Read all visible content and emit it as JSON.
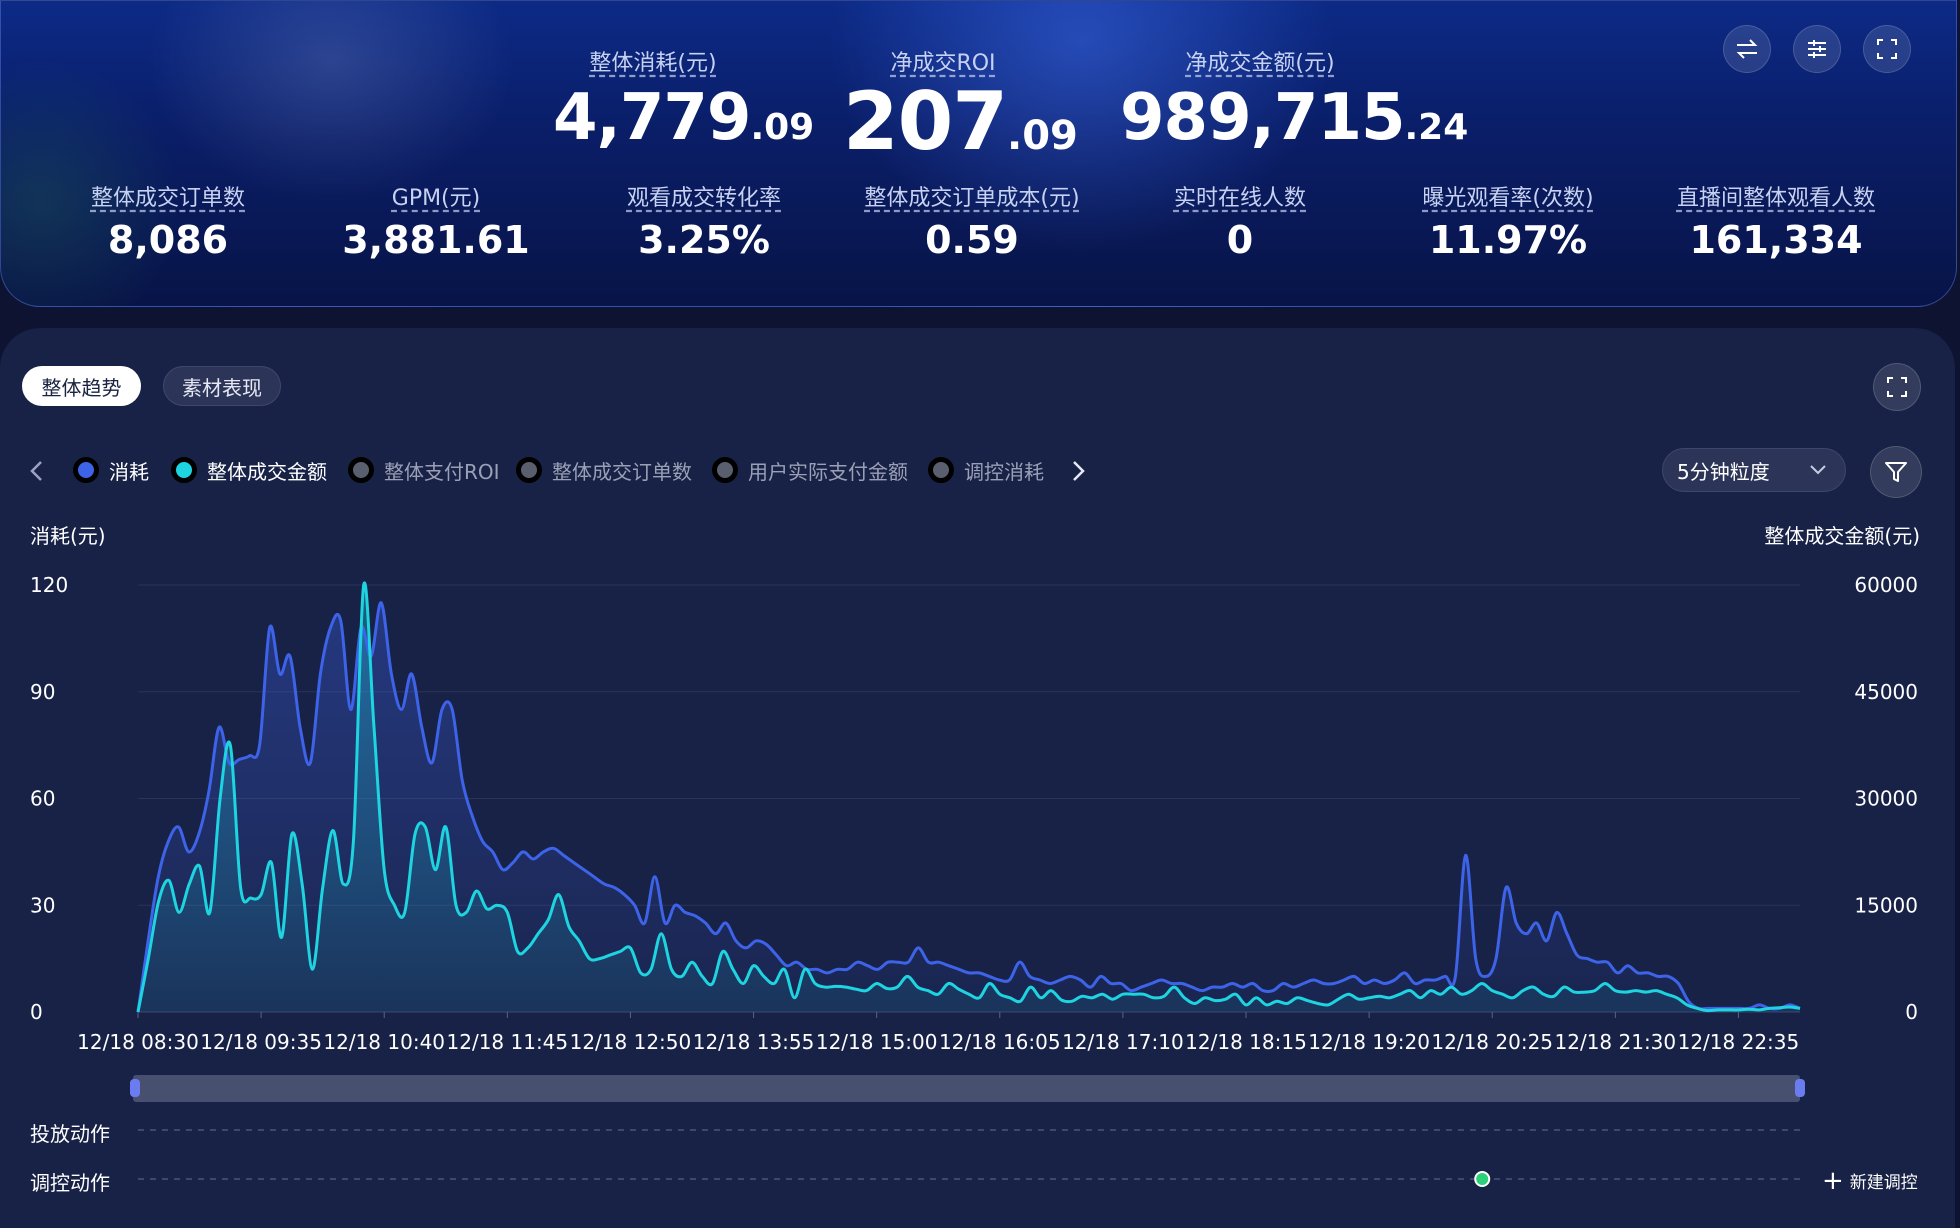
{
  "main_metrics": [
    {
      "label": "整体消耗(元)",
      "int": "4,779",
      "dec": ".09"
    },
    {
      "label": "净成交ROI",
      "int": "207",
      "dec": ".09"
    },
    {
      "label": "净成交金额(元)",
      "int": "989,715",
      "dec": ".24"
    }
  ],
  "sub_metrics": [
    {
      "label": "整体成交订单数",
      "value": "8,086"
    },
    {
      "label": "GPM(元)",
      "value": "3,881.61"
    },
    {
      "label": "观看成交转化率",
      "value": "3.25%"
    },
    {
      "label": "整体成交订单成本(元)",
      "value": "0.59"
    },
    {
      "label": "实时在线人数",
      "value": "0"
    },
    {
      "label": "曝光观看率(次数)",
      "value": "11.97%"
    },
    {
      "label": "直播间整体观看人数",
      "value": "161,334"
    }
  ],
  "top_buttons": [
    "swap-icon",
    "settings-sliders-icon",
    "fullscreen-icon"
  ],
  "tabs": {
    "active": "整体趋势",
    "inactive": "素材表现"
  },
  "legend": [
    {
      "label": "消耗",
      "color": "#3d63e8",
      "active": true
    },
    {
      "label": "整体成交金额",
      "color": "#1ed4e0",
      "active": true
    },
    {
      "label": "整体支付ROI",
      "color": "#5a5f70",
      "active": false
    },
    {
      "label": "整体成交订单数",
      "color": "#5a5f70",
      "active": false
    },
    {
      "label": "用户实际支付金额",
      "color": "#5a5f70",
      "active": false
    },
    {
      "label": "调控消耗",
      "color": "#5a5f70",
      "active": false
    }
  ],
  "granularity": {
    "selected": "5分钟粒度"
  },
  "actions": {
    "delivery": "投放动作",
    "control": "调控动作",
    "new_control": "新建调控"
  },
  "chart_data": {
    "type": "line",
    "ylabel_left": "消耗(元)",
    "ylabel_right": "整体成交金额(元)",
    "yticks_left": [
      "0",
      "30",
      "60",
      "90",
      "120"
    ],
    "yticks_right": [
      "0",
      "15000",
      "30000",
      "45000",
      "60000"
    ],
    "ylim_left": [
      0,
      120
    ],
    "ylim_right": [
      0,
      60000
    ],
    "x_tick_labels": [
      "12/18 08:30",
      "12/18 09:35",
      "12/18 10:40",
      "12/18 11:45",
      "12/18 12:50",
      "12/18 13:55",
      "12/18 15:00",
      "12/18 16:05",
      "12/18 17:10",
      "12/18 18:15",
      "12/18 19:20",
      "12/18 20:25",
      "12/18 21:30",
      "12/18 22:35"
    ],
    "grid": true,
    "series": [
      {
        "name": "消耗",
        "color": "#3d63e8",
        "axis": "left",
        "values": [
          0,
          20,
          38,
          48,
          52,
          45,
          50,
          62,
          80,
          70,
          71,
          72,
          75,
          108,
          95,
          100,
          80,
          70,
          95,
          108,
          110,
          85,
          108,
          100,
          115,
          95,
          85,
          95,
          80,
          70,
          85,
          85,
          65,
          55,
          48,
          45,
          40,
          42,
          45,
          43,
          45,
          46,
          44,
          42,
          40,
          38,
          36,
          35,
          33,
          30,
          25,
          38,
          25,
          30,
          28,
          27,
          25,
          22,
          25,
          20,
          18,
          20,
          19,
          16,
          13,
          14,
          12,
          12,
          11,
          12,
          12,
          14,
          13,
          12,
          14,
          14,
          14,
          18,
          14,
          14,
          13,
          12,
          11,
          11,
          10,
          9,
          9,
          14,
          10,
          9,
          8,
          9,
          10,
          9,
          7,
          10,
          8,
          8,
          6,
          7,
          8,
          9,
          8,
          8,
          7,
          6,
          7,
          7,
          8,
          7,
          8,
          6,
          6,
          8,
          7,
          8,
          9,
          8,
          8,
          9,
          10,
          8,
          9,
          8,
          9,
          11,
          8,
          9,
          9,
          10,
          10,
          44,
          15,
          10,
          15,
          35,
          25,
          22,
          25,
          20,
          28,
          22,
          16,
          15,
          14,
          14,
          11,
          13,
          11,
          11,
          10,
          10,
          8,
          3,
          1,
          1,
          1,
          1,
          1,
          1,
          2,
          1,
          1,
          2,
          1
        ]
      },
      {
        "name": "整体成交金额",
        "color": "#1ed4e0",
        "axis": "right",
        "values": [
          0,
          7500,
          15500,
          18500,
          14000,
          18000,
          20500,
          14000,
          30000,
          37500,
          17500,
          16000,
          16500,
          21000,
          10500,
          25000,
          18000,
          6000,
          17500,
          25500,
          18000,
          24000,
          60000,
          40000,
          20000,
          15000,
          14000,
          25000,
          26000,
          20000,
          26000,
          15000,
          14000,
          17000,
          14500,
          15000,
          14000,
          8500,
          9000,
          11000,
          13000,
          16500,
          12000,
          10000,
          7500,
          7500,
          8000,
          8500,
          9000,
          5500,
          6000,
          11000,
          6000,
          5000,
          7000,
          5000,
          4000,
          8500,
          6000,
          4000,
          6500,
          5000,
          4000,
          6000,
          2000,
          6000,
          4000,
          3500,
          3600,
          3500,
          3200,
          3000,
          4000,
          3300,
          3500,
          5000,
          3500,
          3000,
          2500,
          4000,
          3200,
          2500,
          2000,
          4000,
          2500,
          2000,
          1500,
          3500,
          2000,
          3000,
          1700,
          1500,
          2200,
          2000,
          2500,
          1800,
          2500,
          2500,
          2500,
          2000,
          2200,
          3500,
          2000,
          1200,
          2000,
          1600,
          1800,
          2500,
          1000,
          2000,
          1000,
          1500,
          1200,
          2000,
          1600,
          1200,
          1000,
          1800,
          2500,
          1800,
          2000,
          2200,
          2000,
          2500,
          3000,
          2000,
          3000,
          2500,
          3500,
          2500,
          3000,
          4000,
          3000,
          2500,
          2000,
          3000,
          3500,
          2500,
          2200,
          3500,
          2800,
          2800,
          3000,
          4000,
          3000,
          2800,
          3000,
          2800,
          3000,
          2500,
          2000,
          1000,
          500,
          200,
          300,
          300,
          300,
          400,
          300,
          500,
          600,
          700,
          500
        ]
      }
    ],
    "control_action_marker_x": "12/18 20:25"
  }
}
